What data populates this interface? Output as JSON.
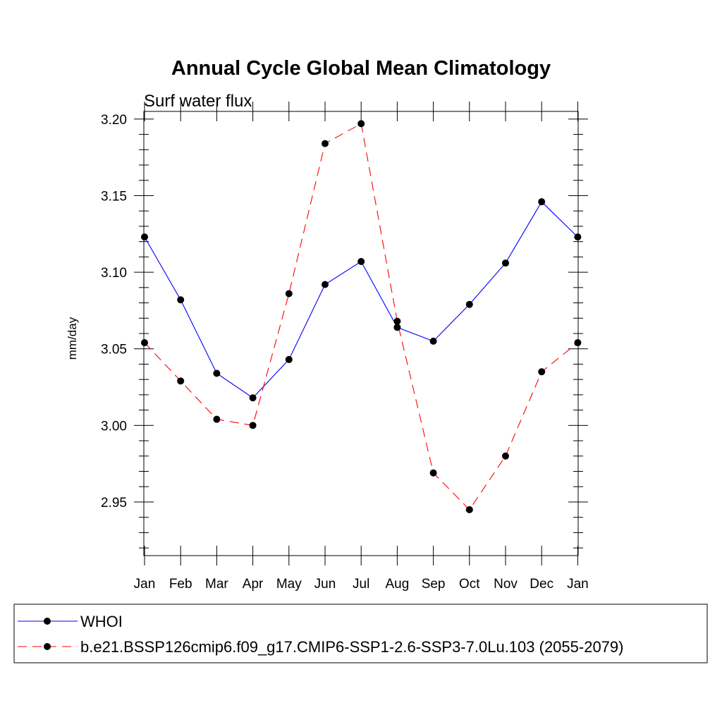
{
  "chart_data": {
    "type": "line",
    "title": "Annual Cycle Global Mean Climatology",
    "subtitle": "Surf water flux",
    "xlabel": "",
    "ylabel": "mm/day",
    "categories": [
      "Jan",
      "Feb",
      "Mar",
      "Apr",
      "May",
      "Jun",
      "Jul",
      "Aug",
      "Sep",
      "Oct",
      "Nov",
      "Dec",
      "Jan"
    ],
    "ylim": [
      2.915,
      3.205
    ],
    "yticks": [
      2.95,
      3.0,
      3.05,
      3.1,
      3.15,
      3.2
    ],
    "ytick_labels": [
      "2.95",
      "3.00",
      "3.05",
      "3.10",
      "3.15",
      "3.20"
    ],
    "legend_position": "bottom",
    "series": [
      {
        "name": "WHOI",
        "color": "#0000ff",
        "dash": "solid",
        "marker": "filled-circle",
        "values": [
          3.123,
          3.082,
          3.034,
          3.018,
          3.043,
          3.092,
          3.107,
          3.064,
          3.055,
          3.079,
          3.106,
          3.146,
          3.123
        ]
      },
      {
        "name": "b.e21.BSSP126cmip6.f09_g17.CMIP6-SSP1-2.6-SSP3-7.0Lu.103 (2055-2079)",
        "color": "#ff0000",
        "dash": "dashed",
        "marker": "filled-circle",
        "values": [
          3.054,
          3.029,
          3.004,
          3.0,
          3.086,
          3.184,
          3.197,
          3.068,
          2.969,
          2.945,
          2.98,
          3.035,
          3.054
        ]
      }
    ]
  }
}
